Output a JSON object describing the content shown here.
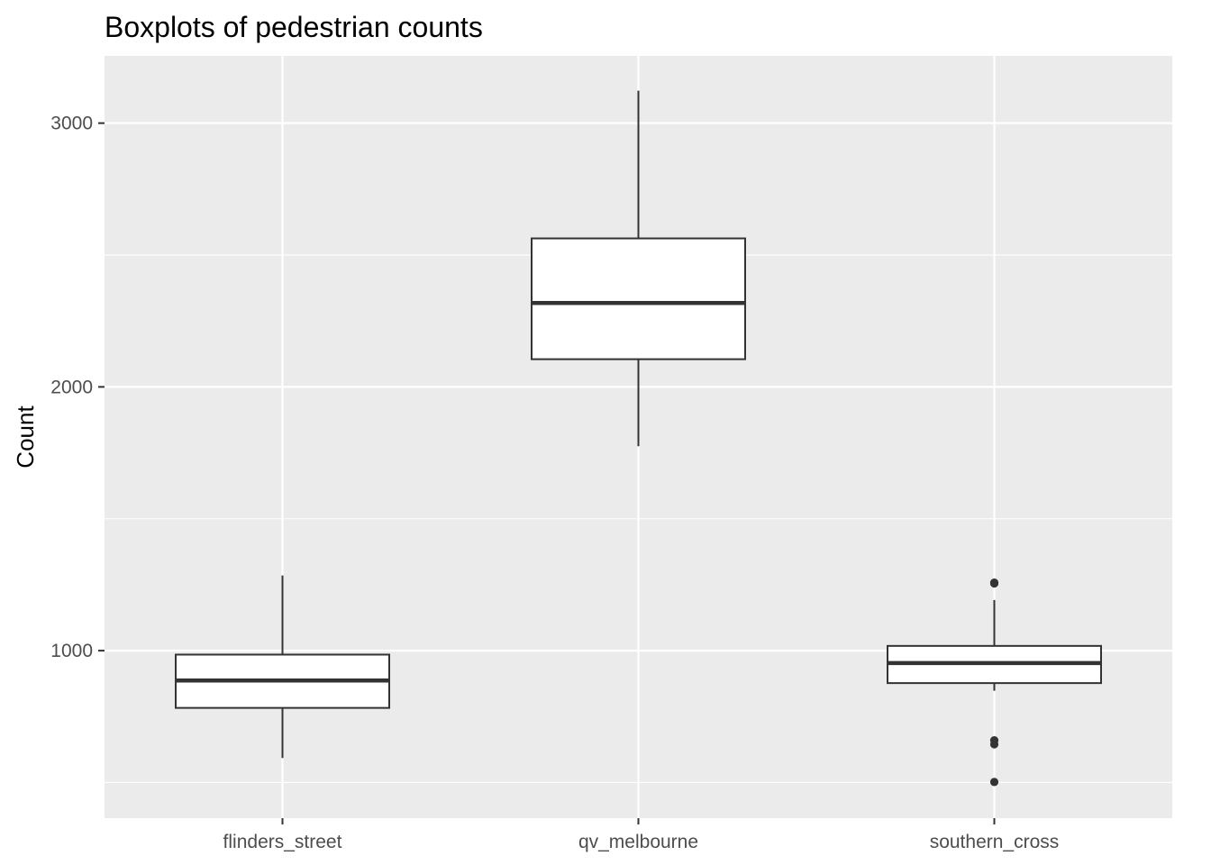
{
  "chart_data": {
    "type": "boxplot",
    "title": "Boxplots of pedestrian counts",
    "xlabel": "",
    "ylabel": "Count",
    "ylim": [
      365,
      3255
    ],
    "yticks": [
      1000,
      2000,
      3000
    ],
    "yticks_minor": [
      500,
      1500,
      2500
    ],
    "grid": true,
    "legend": "none",
    "categories": [
      "flinders_street",
      "qv_melbourne",
      "southern_cross"
    ],
    "boxes": [
      {
        "category": "flinders_street",
        "whisker_low": 593,
        "q1": 783,
        "median": 887,
        "q3": 985,
        "whisker_high": 1285,
        "outliers": []
      },
      {
        "category": "qv_melbourne",
        "whisker_low": 1775,
        "q1": 2105,
        "median": 2318,
        "q3": 2563,
        "whisker_high": 3123,
        "outliers": []
      },
      {
        "category": "southern_cross",
        "whisker_low": 848,
        "q1": 877,
        "median": 953,
        "q3": 1018,
        "whisker_high": 1192,
        "outliers": [
          1255,
          1258,
          660,
          645,
          502
        ]
      }
    ],
    "colors": {
      "panel": "#ebebeb",
      "grid": "#ffffff",
      "box_fill": "#ffffff",
      "box_line": "#333333",
      "tick_text": "#4d4d4d"
    }
  }
}
